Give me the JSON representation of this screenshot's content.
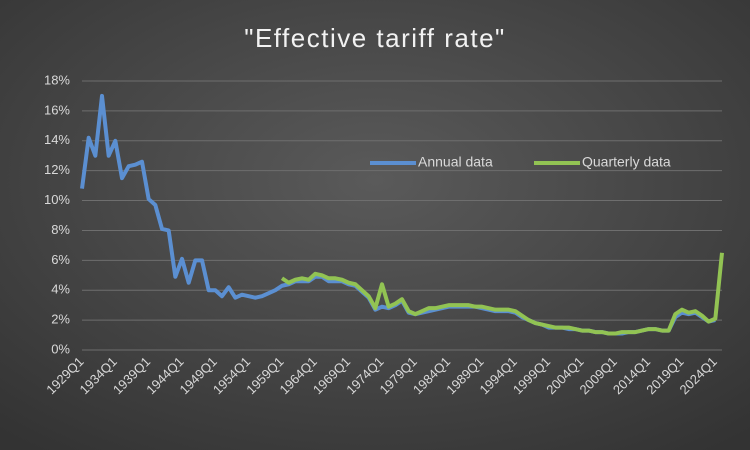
{
  "chart_data": {
    "type": "line",
    "title": "\"Effective tariff rate\"",
    "categories": [
      "1929Q1",
      null,
      null,
      null,
      null,
      "1934Q1",
      null,
      null,
      null,
      null,
      "1939Q1",
      null,
      null,
      null,
      null,
      "1944Q1",
      null,
      null,
      null,
      null,
      "1949Q1",
      null,
      null,
      null,
      null,
      "1954Q1",
      null,
      null,
      null,
      null,
      "1959Q1",
      null,
      null,
      null,
      null,
      "1964Q1",
      null,
      null,
      null,
      null,
      "1969Q1",
      null,
      null,
      null,
      null,
      "1974Q1",
      null,
      null,
      null,
      null,
      "1979Q1",
      null,
      null,
      null,
      null,
      "1984Q1",
      null,
      null,
      null,
      null,
      "1989Q1",
      null,
      null,
      null,
      null,
      "1994Q1",
      null,
      null,
      null,
      null,
      "1999Q1",
      null,
      null,
      null,
      null,
      "2004Q1",
      null,
      null,
      null,
      null,
      "2009Q1",
      null,
      null,
      null,
      null,
      "2014Q1",
      null,
      null,
      null,
      null,
      "2019Q1",
      null,
      null,
      null,
      null,
      "2024Q1",
      null
    ],
    "series": [
      {
        "name": "Annual data",
        "color": "#5b8fd1",
        "values": [
          10.8,
          14.2,
          13.0,
          17.0,
          13.0,
          14.0,
          11.5,
          12.3,
          12.4,
          12.6,
          10.1,
          9.7,
          8.1,
          8.0,
          4.9,
          6.1,
          4.5,
          6.0,
          6.0,
          4.0,
          4.0,
          3.6,
          4.2,
          3.5,
          3.7,
          3.6,
          3.5,
          3.6,
          3.8,
          4.0,
          4.3,
          4.4,
          4.6,
          4.6,
          4.6,
          4.9,
          4.9,
          4.6,
          4.6,
          4.6,
          4.4,
          4.3,
          3.9,
          3.5,
          2.7,
          2.9,
          2.8,
          3.0,
          3.3,
          2.5,
          2.4,
          2.5,
          2.6,
          2.7,
          2.8,
          2.9,
          2.9,
          2.9,
          2.9,
          2.9,
          2.8,
          2.7,
          2.6,
          2.6,
          2.6,
          2.5,
          2.2,
          2.0,
          1.8,
          1.7,
          1.5,
          1.5,
          1.5,
          1.4,
          1.4,
          1.3,
          1.3,
          1.2,
          1.2,
          1.1,
          1.1,
          1.1,
          1.2,
          1.2,
          1.3,
          1.4,
          1.4,
          1.3,
          1.3,
          2.2,
          2.5,
          2.4,
          2.5,
          2.2,
          1.9,
          2.0,
          null
        ]
      },
      {
        "name": "Quarterly data",
        "color": "#92c353",
        "values": [
          null,
          null,
          null,
          null,
          null,
          null,
          null,
          null,
          null,
          null,
          null,
          null,
          null,
          null,
          null,
          null,
          null,
          null,
          null,
          null,
          null,
          null,
          null,
          null,
          null,
          null,
          null,
          null,
          null,
          null,
          4.8,
          4.5,
          4.7,
          4.8,
          4.7,
          5.1,
          5.0,
          4.8,
          4.8,
          4.7,
          4.5,
          4.4,
          4.0,
          3.6,
          2.8,
          4.4,
          2.9,
          3.1,
          3.4,
          2.6,
          2.4,
          2.6,
          2.8,
          2.8,
          2.9,
          3.0,
          3.0,
          3.0,
          3.0,
          2.9,
          2.9,
          2.8,
          2.7,
          2.7,
          2.7,
          2.6,
          2.3,
          2.0,
          1.8,
          1.7,
          1.6,
          1.5,
          1.5,
          1.5,
          1.4,
          1.3,
          1.3,
          1.2,
          1.2,
          1.1,
          1.1,
          1.2,
          1.2,
          1.2,
          1.3,
          1.4,
          1.4,
          1.3,
          1.3,
          2.4,
          2.7,
          2.5,
          2.6,
          2.3,
          1.9,
          2.1,
          6.5
        ]
      }
    ],
    "ylim": [
      0,
      18
    ],
    "yticks": [
      {
        "value": 0,
        "label": "0%"
      },
      {
        "value": 2,
        "label": "2%"
      },
      {
        "value": 4,
        "label": "4%"
      },
      {
        "value": 6,
        "label": "6%"
      },
      {
        "value": 8,
        "label": "8%"
      },
      {
        "value": 10,
        "label": "10%"
      },
      {
        "value": 12,
        "label": "12%"
      },
      {
        "value": 14,
        "label": "14%"
      },
      {
        "value": 16,
        "label": "16%"
      },
      {
        "value": 18,
        "label": "18%"
      }
    ],
    "grid": true
  }
}
